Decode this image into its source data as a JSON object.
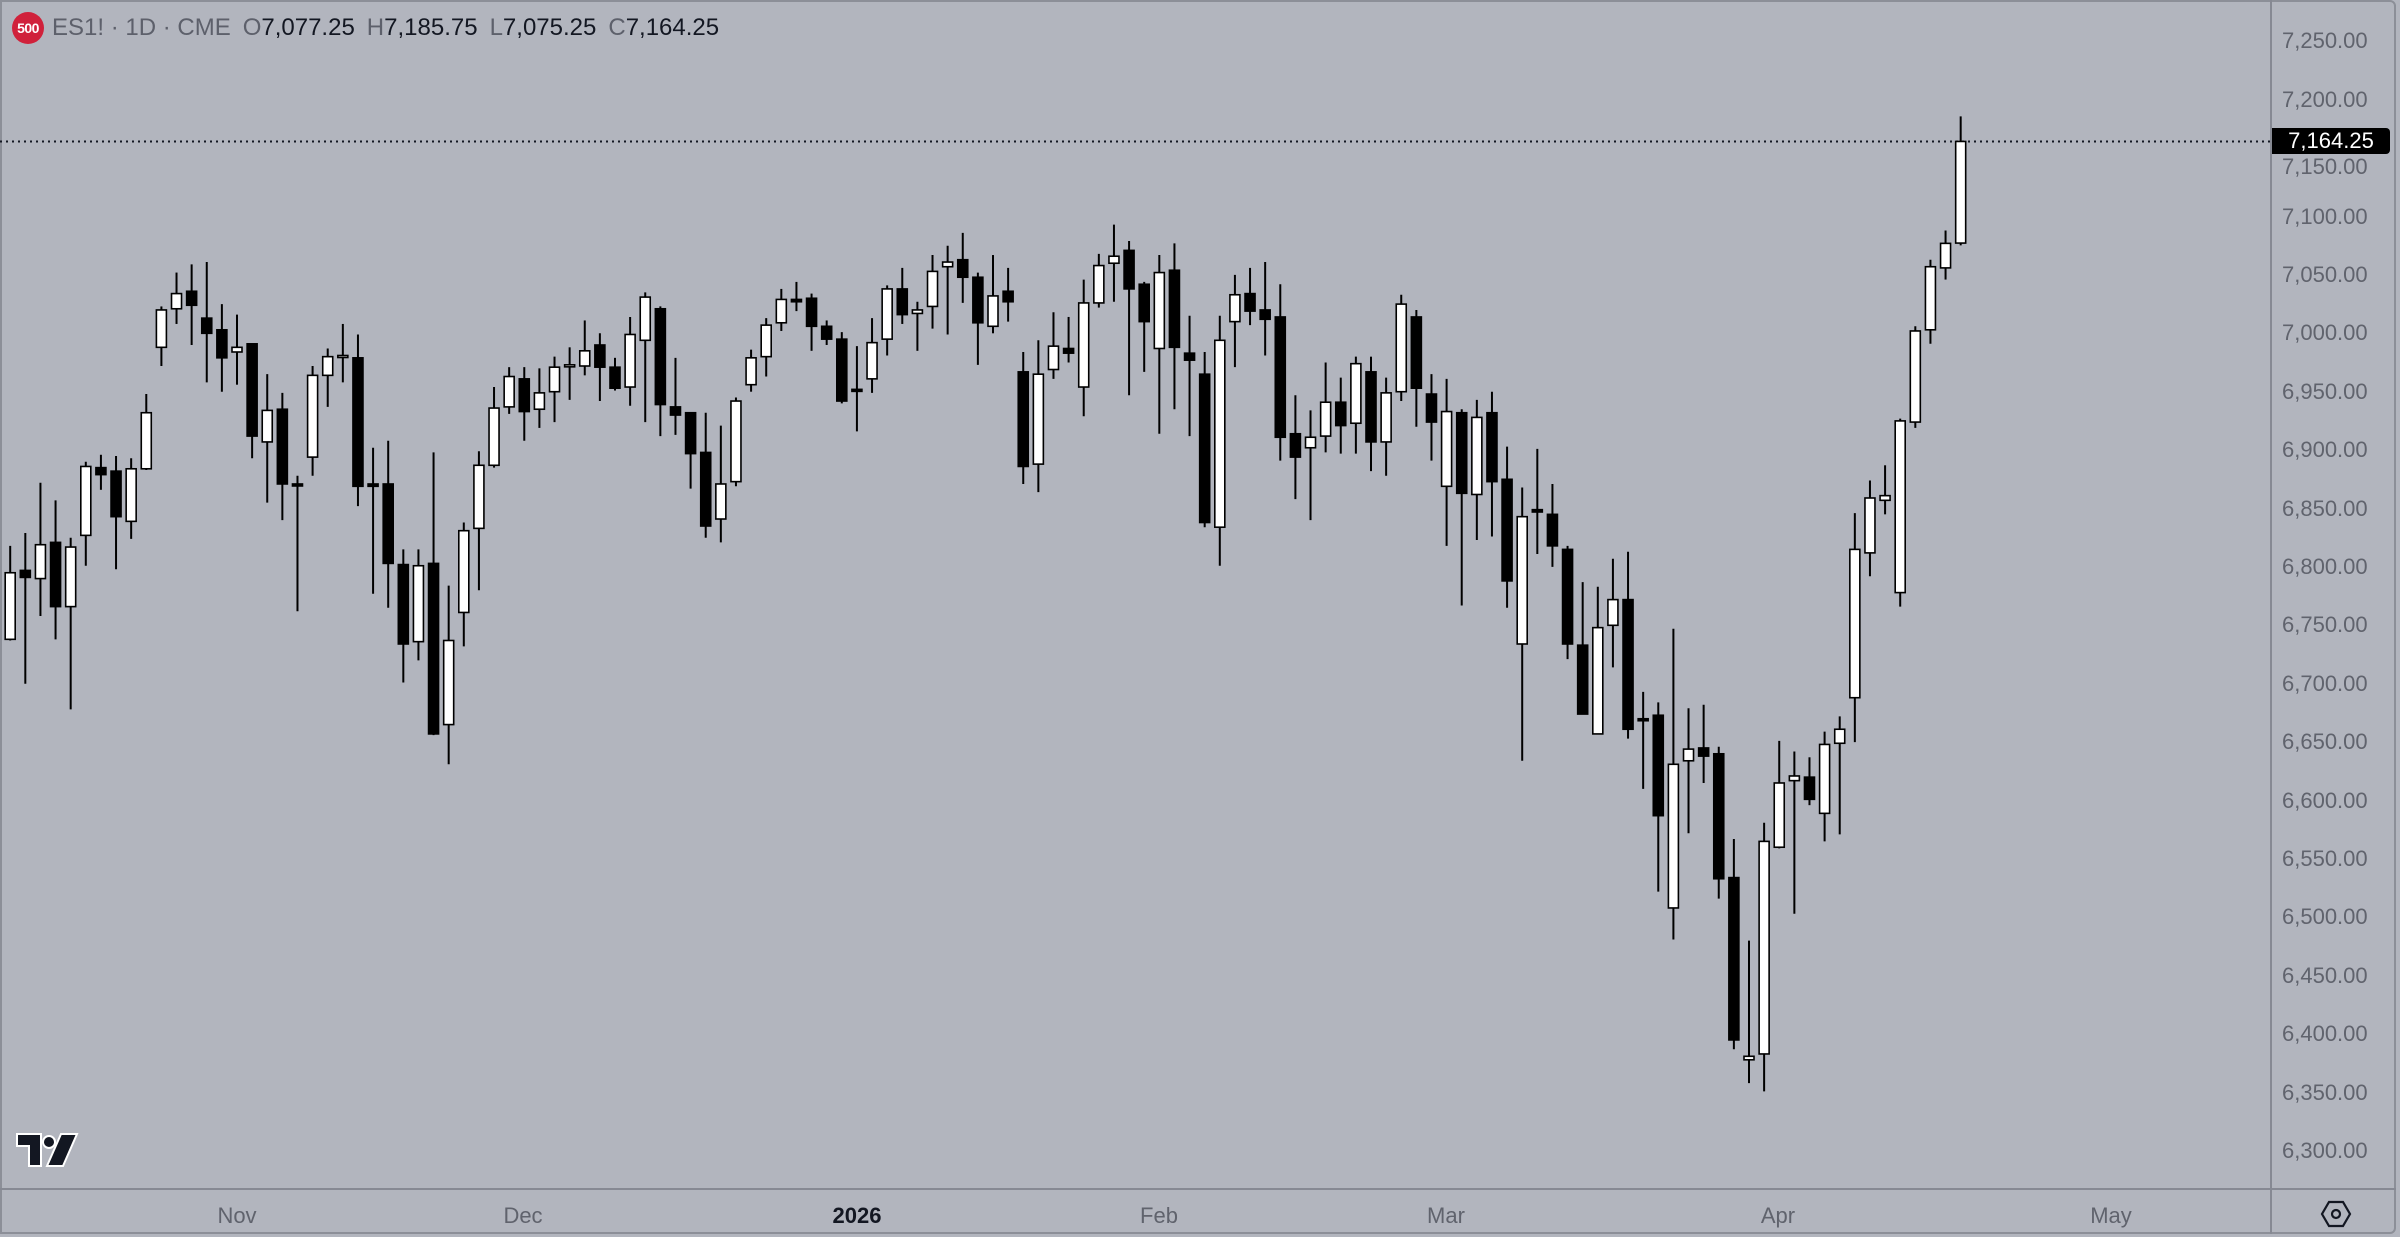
{
  "legend": {
    "badge": "500",
    "title": "ES1! · 1D · CME",
    "open_label": "O",
    "open": "7,077.25",
    "high_label": "H",
    "high": "7,185.75",
    "low_label": "L",
    "low": "7,075.25",
    "close_label": "C",
    "close": "7,164.25"
  },
  "last_price_tag": "7,164.25",
  "colors": {
    "background": "#b2b5be",
    "up_body": "#ffffff",
    "down_body": "#000000",
    "wick": "#000000",
    "badge": "#d0213b"
  },
  "icons": {
    "logo": "tradingview-logo",
    "settings": "settings-hexagon-icon"
  },
  "chart_data": {
    "type": "candlestick",
    "title": "",
    "ylim": [
      6280,
      7275
    ],
    "grid": false,
    "last_price_line": 7164.25,
    "y_ticks": [
      "7,250.00",
      "7,200.00",
      "7,150.00",
      "7,100.00",
      "7,050.00",
      "7,000.00",
      "6,950.00",
      "6,900.00",
      "6,850.00",
      "6,800.00",
      "6,750.00",
      "6,700.00",
      "6,650.00",
      "6,600.00",
      "6,550.00",
      "6,500.00",
      "6,450.00",
      "6,400.00",
      "6,350.00",
      "6,300.00"
    ],
    "x_ticks": [
      "Nov",
      "Dec",
      "2026",
      "Feb",
      "Mar",
      "Apr",
      "May"
    ],
    "ohlc_fields": [
      "open",
      "high",
      "low",
      "close"
    ],
    "candles": [
      [
        6738,
        6818,
        6737,
        6795
      ],
      [
        6797,
        6829,
        6700,
        6791
      ],
      [
        6790,
        6872,
        6758,
        6819
      ],
      [
        6821,
        6857,
        6738,
        6766
      ],
      [
        6766,
        6825,
        6678,
        6817
      ],
      [
        6827,
        6890,
        6801,
        6886
      ],
      [
        6885,
        6896,
        6866,
        6879
      ],
      [
        6882,
        6895,
        6798,
        6843
      ],
      [
        6839,
        6893,
        6824,
        6884
      ],
      [
        6884,
        6948,
        6883,
        6932
      ],
      [
        6988,
        7023,
        6972,
        7020
      ],
      [
        7021,
        7052,
        7008,
        7034
      ],
      [
        7036,
        7059,
        6990,
        7024
      ],
      [
        7013,
        7061,
        6958,
        7000
      ],
      [
        7003,
        7025,
        6950,
        6979
      ],
      [
        6984,
        7016,
        6956,
        6988
      ],
      [
        6991,
        6991,
        6893,
        6912
      ],
      [
        6907,
        6965,
        6855,
        6934
      ],
      [
        6935,
        6949,
        6840,
        6871
      ],
      [
        6871,
        6878,
        6762,
        6870
      ],
      [
        6894,
        6972,
        6878,
        6964
      ],
      [
        6964,
        6987,
        6937,
        6980
      ],
      [
        6981,
        7008,
        6958,
        6981
      ],
      [
        6979,
        6999,
        6852,
        6869
      ],
      [
        6871,
        6902,
        6777,
        6869
      ],
      [
        6871,
        6908,
        6765,
        6803
      ],
      [
        6802,
        6815,
        6701,
        6734
      ],
      [
        6736,
        6815,
        6720,
        6801
      ],
      [
        6803,
        6898,
        6656,
        6657
      ],
      [
        6665,
        6784,
        6631,
        6737
      ],
      [
        6761,
        6838,
        6732,
        6831
      ],
      [
        6833,
        6899,
        6780,
        6887
      ],
      [
        6887,
        6954,
        6885,
        6936
      ],
      [
        6937,
        6971,
        6931,
        6963
      ],
      [
        6961,
        6971,
        6908,
        6933
      ],
      [
        6935,
        6970,
        6919,
        6949
      ],
      [
        6950,
        6980,
        6924,
        6971
      ],
      [
        6973,
        6988,
        6943,
        6973
      ],
      [
        6972,
        7011,
        6964,
        6985
      ],
      [
        6990,
        7000,
        6942,
        6971
      ],
      [
        6971,
        6979,
        6951,
        6953
      ],
      [
        6954,
        7014,
        6938,
        6999
      ],
      [
        6994,
        7035,
        6924,
        7031
      ],
      [
        7021,
        7023,
        6912,
        6939
      ],
      [
        6937,
        6979,
        6913,
        6930
      ],
      [
        6932,
        6932,
        6867,
        6897
      ],
      [
        6898,
        6932,
        6825,
        6835
      ],
      [
        6841,
        6921,
        6821,
        6871
      ],
      [
        6873,
        6945,
        6869,
        6942
      ],
      [
        6956,
        6986,
        6950,
        6979
      ],
      [
        6980,
        7013,
        6963,
        7007
      ],
      [
        7009,
        7038,
        7002,
        7029
      ],
      [
        7029,
        7044,
        7019,
        7027
      ],
      [
        7030,
        7034,
        6985,
        7006
      ],
      [
        7006,
        7011,
        6990,
        6995
      ],
      [
        6995,
        7001,
        6940,
        6942
      ],
      [
        6952,
        6989,
        6916,
        6951
      ],
      [
        6961,
        7013,
        6949,
        6992
      ],
      [
        6995,
        7041,
        6981,
        7038
      ],
      [
        7038,
        7056,
        7008,
        7016
      ],
      [
        7017,
        7027,
        6985,
        7020
      ],
      [
        7023,
        7067,
        7004,
        7053
      ],
      [
        7057,
        7075,
        6999,
        7061
      ],
      [
        7063,
        7086,
        7026,
        7048
      ],
      [
        7048,
        7052,
        6973,
        7009
      ],
      [
        7006,
        7067,
        7000,
        7032
      ],
      [
        7036,
        7056,
        7010,
        7027
      ],
      [
        6967,
        6984,
        6871,
        6886
      ],
      [
        6888,
        6994,
        6864,
        6965
      ],
      [
        6969,
        7018,
        6961,
        6989
      ],
      [
        6987,
        7014,
        6975,
        6983
      ],
      [
        6954,
        7046,
        6929,
        7026
      ],
      [
        7026,
        7068,
        7022,
        7058
      ],
      [
        7060,
        7093,
        7027,
        7066
      ],
      [
        7071,
        7079,
        6947,
        7038
      ],
      [
        7042,
        7044,
        6967,
        7010
      ],
      [
        6987,
        7067,
        6914,
        7052
      ],
      [
        7054,
        7077,
        6935,
        6988
      ],
      [
        6983,
        7015,
        6912,
        6977
      ],
      [
        6965,
        6984,
        6834,
        6838
      ],
      [
        6834,
        7015,
        6801,
        6994
      ],
      [
        7010,
        7050,
        6971,
        7033
      ],
      [
        7034,
        7056,
        7007,
        7019
      ],
      [
        7020,
        7061,
        6981,
        7012
      ],
      [
        7014,
        7042,
        6891,
        6911
      ],
      [
        6914,
        6947,
        6858,
        6894
      ],
      [
        6902,
        6934,
        6840,
        6911
      ],
      [
        6912,
        6975,
        6898,
        6941
      ],
      [
        6941,
        6962,
        6897,
        6921
      ],
      [
        6923,
        6980,
        6897,
        6974
      ],
      [
        6967,
        6980,
        6882,
        6907
      ],
      [
        6907,
        6962,
        6878,
        6949
      ],
      [
        6950,
        7033,
        6942,
        7025
      ],
      [
        7014,
        7020,
        6920,
        6953
      ],
      [
        6948,
        6965,
        6891,
        6924
      ],
      [
        6869,
        6961,
        6818,
        6933
      ],
      [
        6932,
        6935,
        6767,
        6863
      ],
      [
        6862,
        6943,
        6823,
        6928
      ],
      [
        6932,
        6950,
        6826,
        6873
      ],
      [
        6875,
        6903,
        6765,
        6788
      ],
      [
        6734,
        6868,
        6634,
        6843
      ],
      [
        6849,
        6901,
        6811,
        6847
      ],
      [
        6845,
        6871,
        6800,
        6818
      ],
      [
        6815,
        6818,
        6721,
        6734
      ],
      [
        6733,
        6787,
        6674,
        6674
      ],
      [
        6657,
        6783,
        6657,
        6748
      ],
      [
        6750,
        6807,
        6714,
        6772
      ],
      [
        6772,
        6813,
        6653,
        6661
      ],
      [
        6670,
        6693,
        6610,
        6669
      ],
      [
        6673,
        6684,
        6522,
        6587
      ],
      [
        6508,
        6747,
        6481,
        6631
      ],
      [
        6634,
        6679,
        6572,
        6644
      ],
      [
        6645,
        6682,
        6615,
        6638
      ],
      [
        6640,
        6646,
        6516,
        6533
      ],
      [
        6534,
        6567,
        6387,
        6395
      ],
      [
        6378,
        6480,
        6358,
        6381
      ],
      [
        6383,
        6581,
        6351,
        6565
      ],
      [
        6560,
        6651,
        6559,
        6615
      ],
      [
        6617,
        6642,
        6503,
        6621
      ],
      [
        6620,
        6637,
        6596,
        6601
      ],
      [
        6589,
        6659,
        6565,
        6648
      ],
      [
        6649,
        6672,
        6571,
        6661
      ],
      [
        6688,
        6846,
        6650,
        6815
      ],
      [
        6812,
        6874,
        6792,
        6859
      ],
      [
        6857,
        6887,
        6845,
        6861
      ],
      [
        6778,
        6927,
        6766,
        6925
      ],
      [
        6924,
        7006,
        6919,
        7002
      ],
      [
        7003,
        7063,
        6991,
        7057
      ],
      [
        7056,
        7088,
        7046,
        7077
      ],
      [
        7077.25,
        7185.75,
        7075.25,
        7164.25
      ]
    ]
  }
}
